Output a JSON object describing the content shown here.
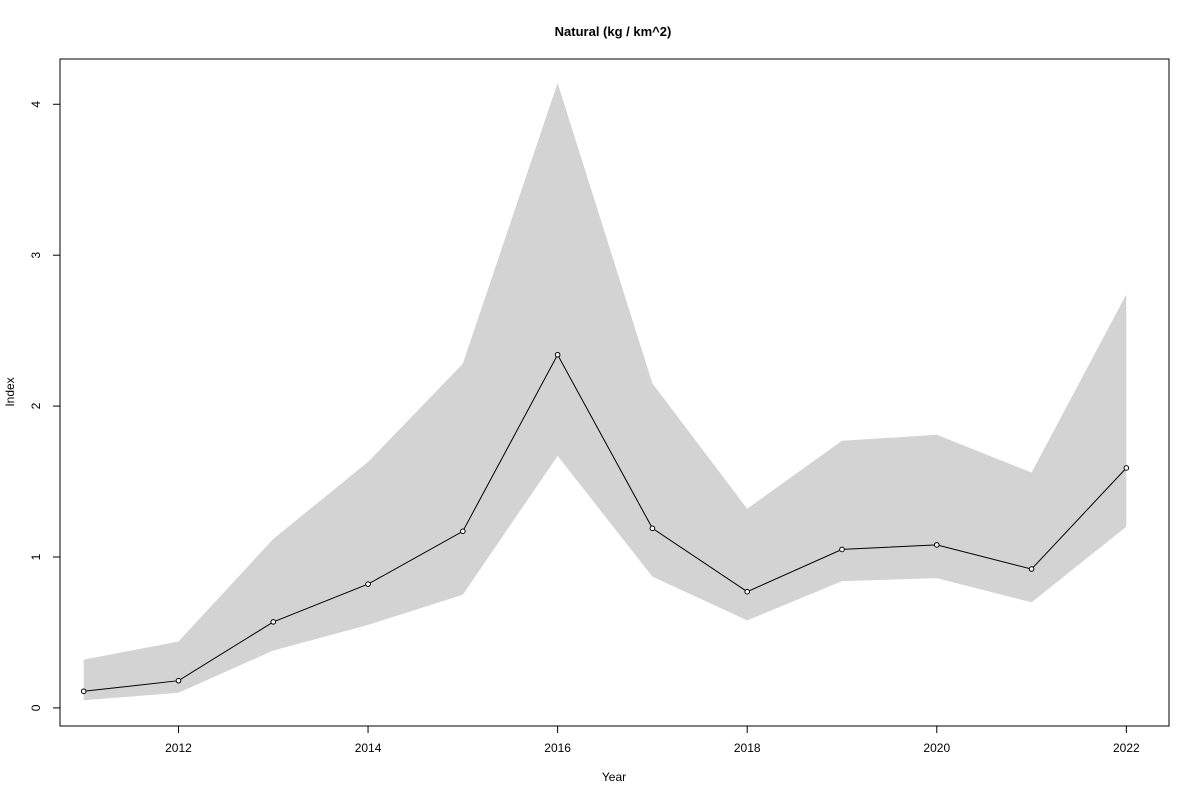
{
  "chart_data": {
    "type": "line",
    "title": "Natural (kg / km^2)",
    "xlabel": "Year",
    "ylabel": "Index",
    "x": [
      2011,
      2012,
      2013,
      2014,
      2015,
      2016,
      2017,
      2018,
      2019,
      2020,
      2021,
      2022
    ],
    "series": [
      {
        "values": [
          0.11,
          0.18,
          0.57,
          0.82,
          1.17,
          2.34,
          1.19,
          0.77,
          1.05,
          1.08,
          0.92,
          1.59
        ]
      }
    ],
    "band": {
      "lower": [
        0.05,
        0.1,
        0.38,
        0.55,
        0.75,
        1.67,
        0.87,
        0.58,
        0.84,
        0.86,
        0.7,
        1.2
      ],
      "upper": [
        0.32,
        0.44,
        1.12,
        1.63,
        2.28,
        4.14,
        2.15,
        1.32,
        1.77,
        1.81,
        1.56,
        2.74
      ],
      "color": "#d3d3d3"
    },
    "xlim": [
      2010.75,
      2022.45
    ],
    "ylim": [
      -0.12,
      4.3
    ],
    "xticks": [
      2012,
      2014,
      2016,
      2018,
      2020,
      2022
    ],
    "yticks": [
      0,
      1,
      2,
      3,
      4
    ],
    "grid": false
  }
}
